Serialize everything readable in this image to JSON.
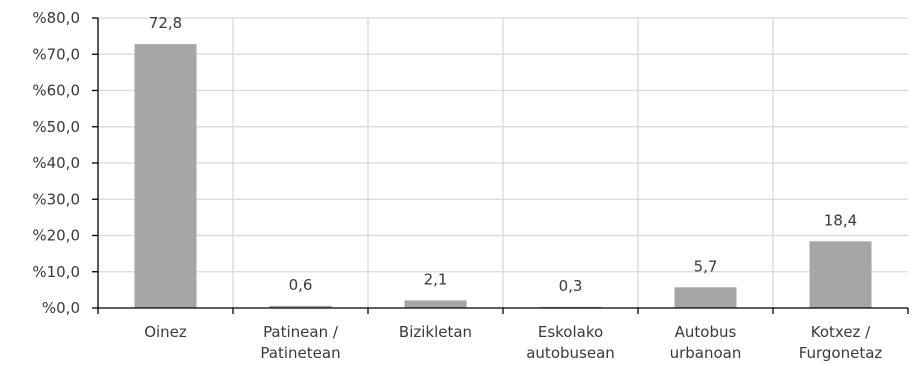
{
  "chart_data": {
    "type": "bar",
    "categories": [
      [
        "Oinez"
      ],
      [
        "Patinean /",
        "Patinetean"
      ],
      [
        "Bizikletan"
      ],
      [
        "Eskolako",
        "autobusean"
      ],
      [
        "Autobus",
        "urbanoan"
      ],
      [
        "Kotxez /",
        "Furgonetaz"
      ]
    ],
    "values": [
      72.8,
      0.6,
      2.1,
      0.3,
      5.7,
      18.4
    ],
    "value_labels": [
      "72,8",
      "0,6",
      "2,1",
      "0,3",
      "5,7",
      "18,4"
    ],
    "yticks": [
      0,
      10,
      20,
      30,
      40,
      50,
      60,
      70,
      80
    ],
    "ytick_labels": [
      "%0,0",
      "%10,0",
      "%20,0",
      "%30,0",
      "%40,0",
      "%50,0",
      "%60,0",
      "%70,0",
      "%80,0"
    ],
    "ylim": [
      0,
      80
    ],
    "grid": true,
    "bar_color": "#a6a6a6",
    "grid_color": "#d9d9d9",
    "axis_color": "#000000"
  }
}
